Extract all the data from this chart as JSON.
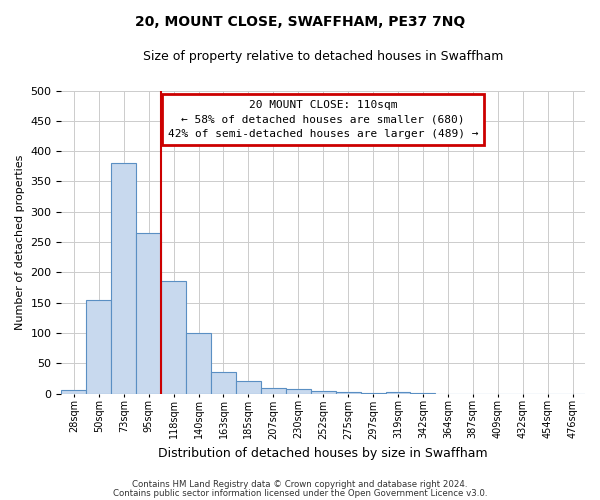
{
  "title": "20, MOUNT CLOSE, SWAFFHAM, PE37 7NQ",
  "subtitle": "Size of property relative to detached houses in Swaffham",
  "xlabel": "Distribution of detached houses by size in Swaffham",
  "ylabel": "Number of detached properties",
  "bar_values": [
    6,
    155,
    380,
    265,
    185,
    100,
    35,
    20,
    10,
    8,
    4,
    2,
    1,
    2,
    1,
    0,
    0,
    0,
    0,
    0,
    0
  ],
  "bar_labels": [
    "28sqm",
    "50sqm",
    "73sqm",
    "95sqm",
    "118sqm",
    "140sqm",
    "163sqm",
    "185sqm",
    "207sqm",
    "230sqm",
    "252sqm",
    "275sqm",
    "297sqm",
    "319sqm",
    "342sqm",
    "364sqm",
    "387sqm",
    "409sqm",
    "432sqm",
    "454sqm",
    "476sqm"
  ],
  "bar_color": "#c8d9ee",
  "bar_edge_color": "#5a8fc3",
  "vline_index": 4,
  "vline_color": "#cc0000",
  "ylim": [
    0,
    500
  ],
  "yticks": [
    0,
    50,
    100,
    150,
    200,
    250,
    300,
    350,
    400,
    450,
    500
  ],
  "annotation_title": "20 MOUNT CLOSE: 110sqm",
  "annotation_line1": "← 58% of detached houses are smaller (680)",
  "annotation_line2": "42% of semi-detached houses are larger (489) →",
  "annotation_box_color": "#cc0000",
  "footer1": "Contains HM Land Registry data © Crown copyright and database right 2024.",
  "footer2": "Contains public sector information licensed under the Open Government Licence v3.0.",
  "bg_color": "#ffffff",
  "grid_color": "#cccccc"
}
